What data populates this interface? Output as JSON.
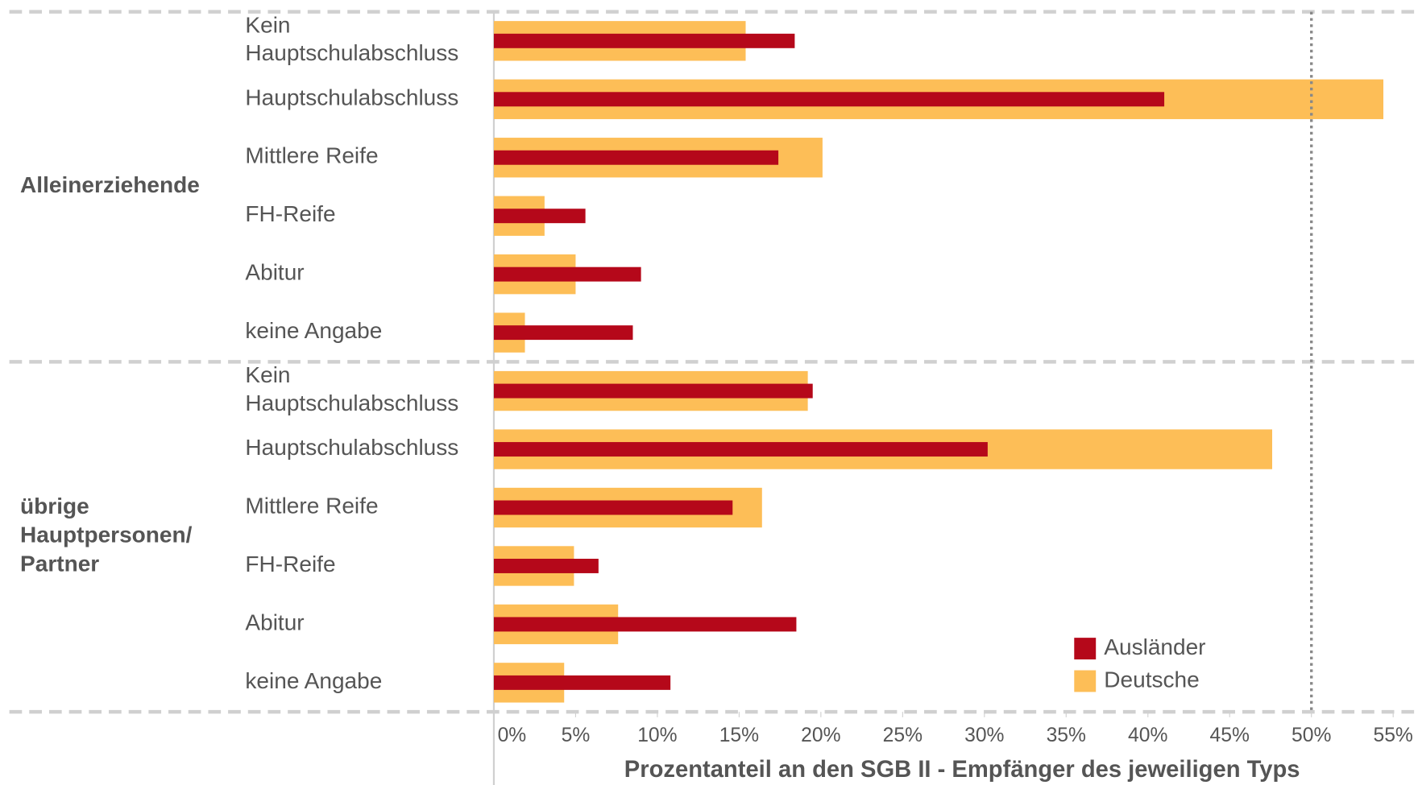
{
  "chart_data": {
    "type": "grouped_hbar",
    "x_label": "Prozentanteil an den SGB II - Empfänger des jeweiligen Typs",
    "groups": [
      {
        "name": "Alleinerziehende",
        "categories": [
          "Kein Hauptschulabschluss",
          "Hauptschulabschluss",
          "Mittlere Reife",
          "FH-Reife",
          "Abitur",
          "keine Angabe"
        ]
      },
      {
        "name": "übrige Hauptpersonen/ Partner",
        "categories": [
          "Kein Hauptschulabschluss",
          "Hauptschulabschluss",
          "Mittlere Reife",
          "FH-Reife",
          "Abitur",
          "keine Angabe"
        ]
      }
    ],
    "series": [
      {
        "name": "Ausländer",
        "color": "#b5081a",
        "values": [
          18.4,
          41.0,
          17.4,
          5.6,
          9.0,
          8.5,
          19.5,
          30.2,
          14.6,
          6.4,
          18.5,
          10.8
        ]
      },
      {
        "name": "Deutsche",
        "color": "#fdbe57",
        "values": [
          15.4,
          54.4,
          20.1,
          3.1,
          5.0,
          1.9,
          19.2,
          47.6,
          16.4,
          4.9,
          7.6,
          4.3
        ]
      }
    ],
    "xlim": [
      0,
      56.5
    ],
    "xticks": [
      {
        "value": 0,
        "label": "0%"
      },
      {
        "value": 5,
        "label": "5%"
      },
      {
        "value": 10,
        "label": "10%"
      },
      {
        "value": 15,
        "label": "15%"
      },
      {
        "value": 20,
        "label": "20%"
      },
      {
        "value": 25,
        "label": "25%"
      },
      {
        "value": 30,
        "label": "30%"
      },
      {
        "value": 35,
        "label": "35%"
      },
      {
        "value": 40,
        "label": "40%"
      },
      {
        "value": 45,
        "label": "45%"
      },
      {
        "value": 50,
        "label": "50%"
      },
      {
        "value": 55,
        "label": "55%"
      }
    ],
    "reference_line": 50,
    "legend": "lower right"
  }
}
